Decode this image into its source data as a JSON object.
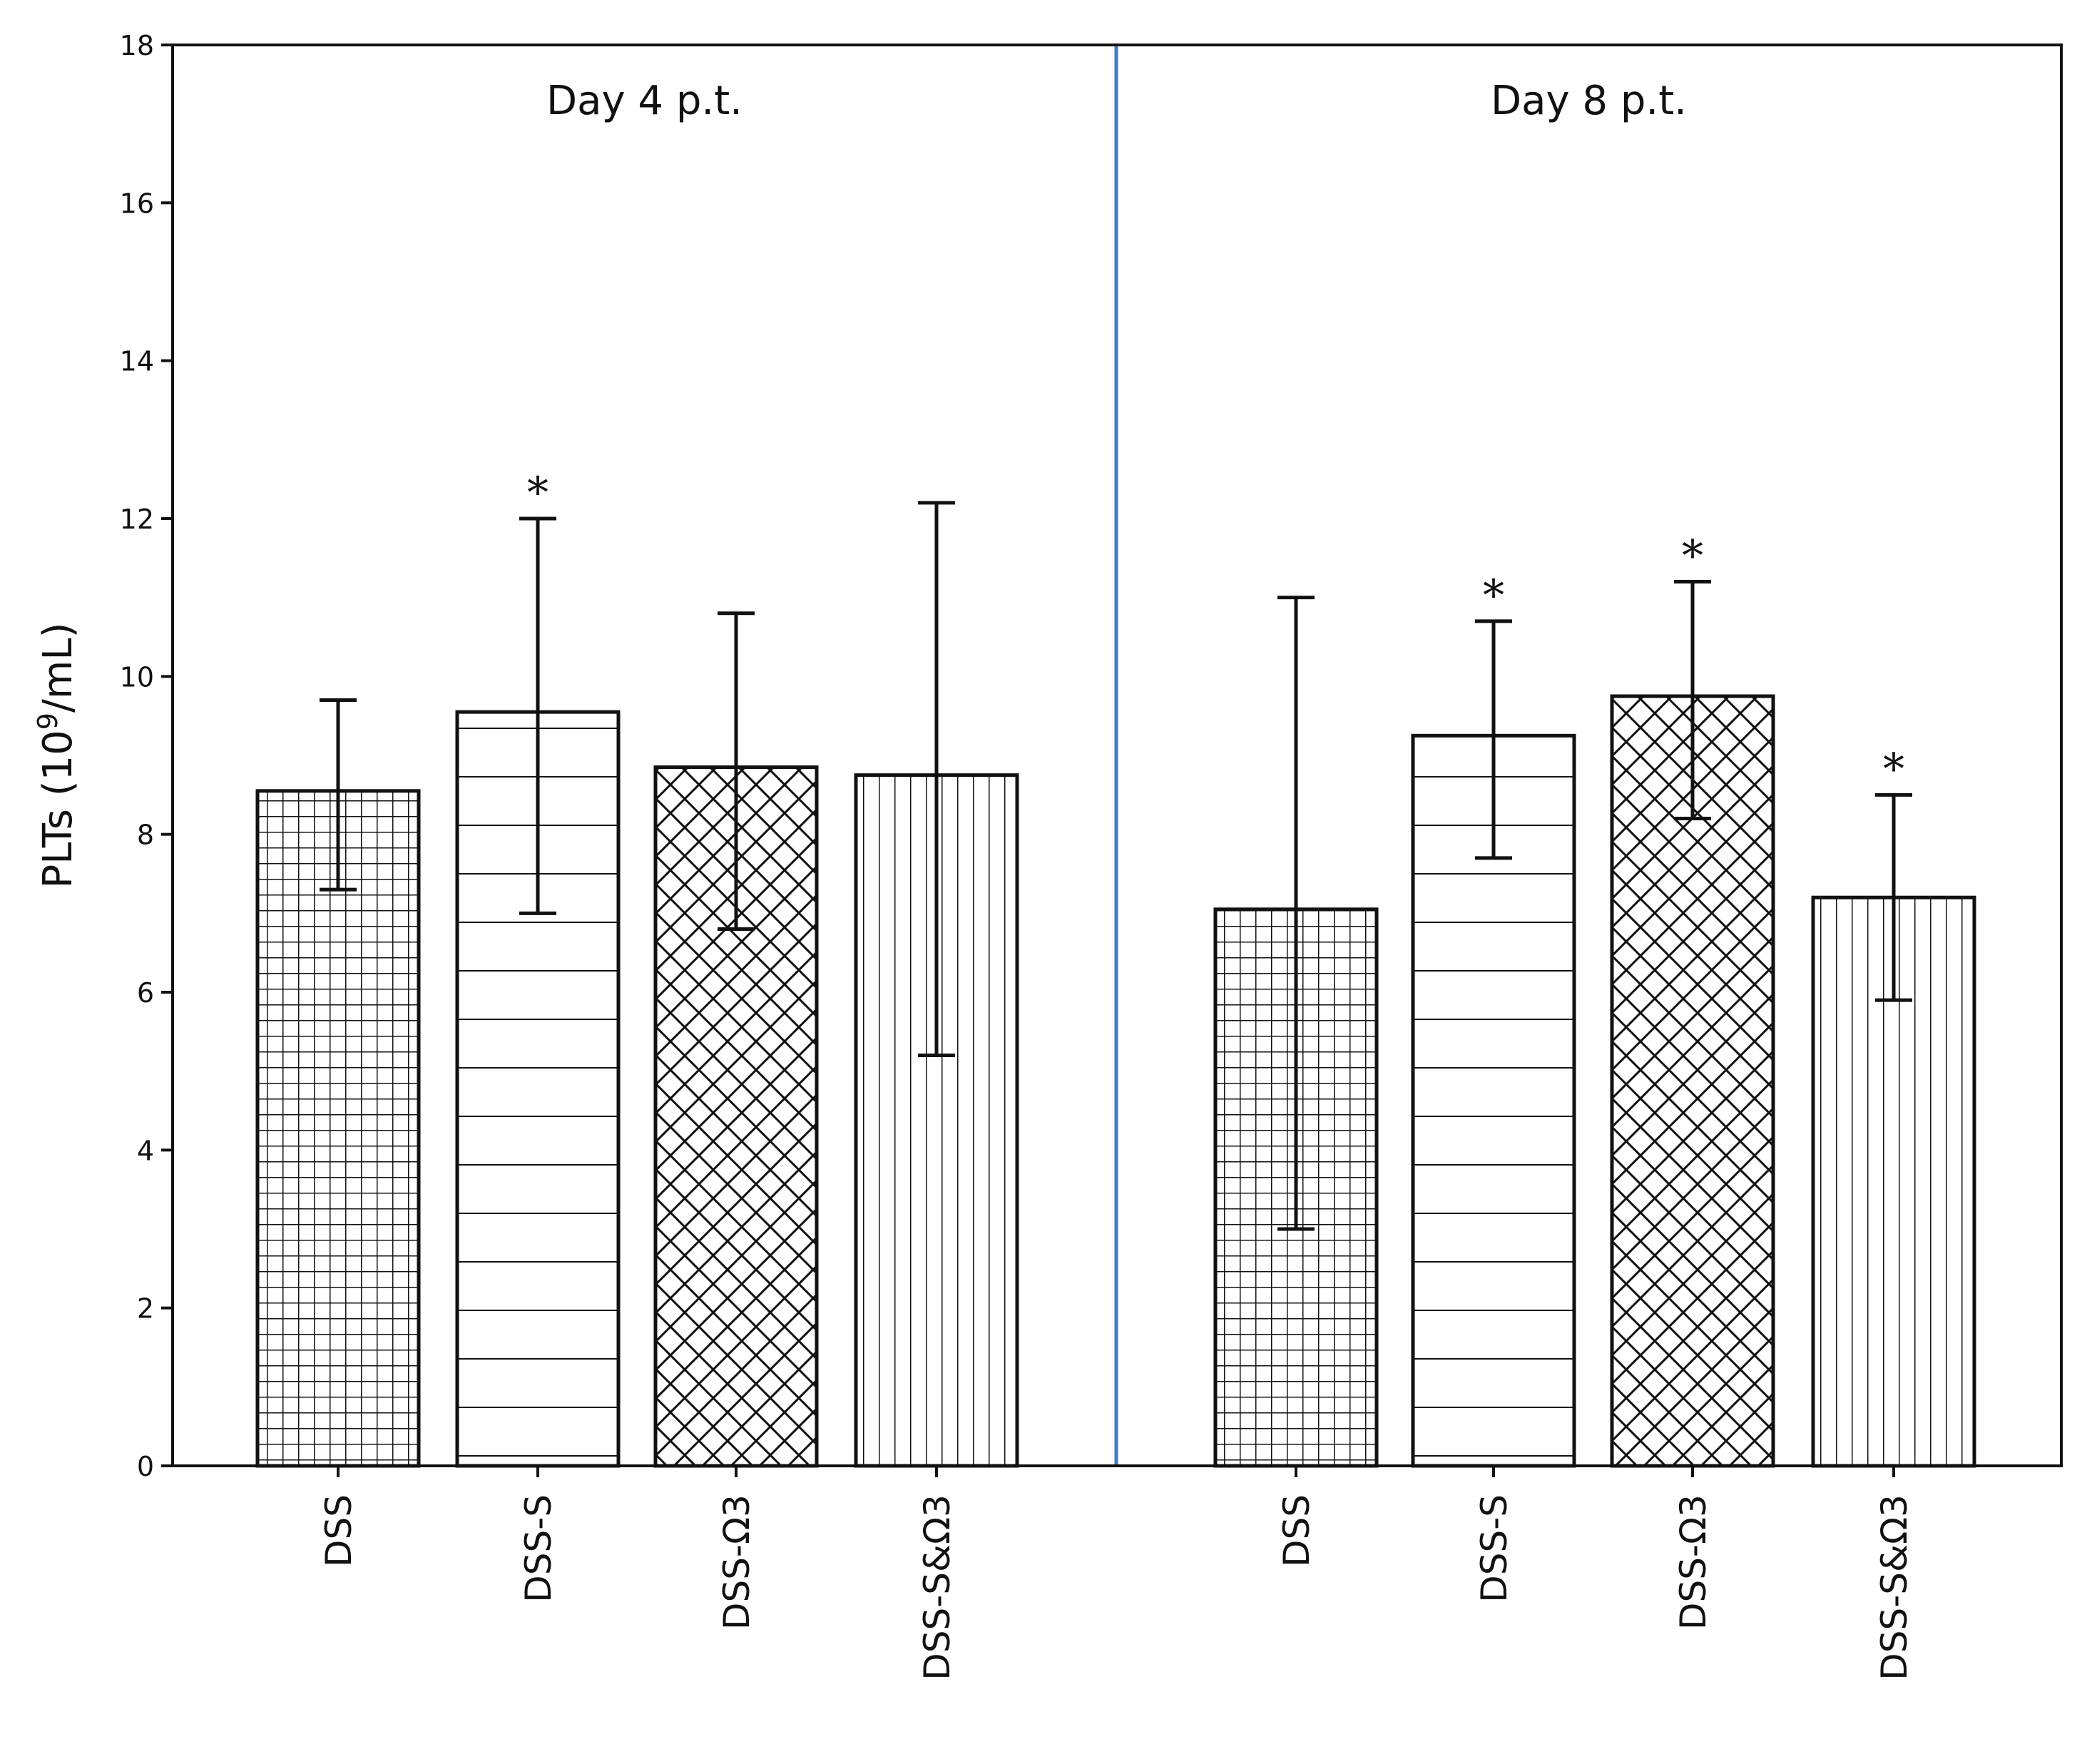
{
  "chart_data": {
    "type": "bar",
    "title": "",
    "xlabel": "",
    "ylabel": "PLTs (10",
    "ylabel_exponent": "9",
    "ylabel_suffix": "/mL)",
    "ylim": [
      0,
      18
    ],
    "yticks": [
      0,
      2,
      4,
      6,
      8,
      10,
      12,
      14,
      16,
      18
    ],
    "grid": false,
    "legend": "none",
    "divider_color": "#3b7fc4",
    "bar_edge_color": "#111111",
    "panels": [
      {
        "label": "Day 4 p.t.",
        "categories": [
          "DSS",
          "DSS-S",
          "DSS-Ω3",
          "DSS-S&Ω3"
        ],
        "values": [
          8.55,
          9.55,
          8.85,
          8.75
        ],
        "err_low": [
          7.3,
          7.0,
          6.8,
          5.2
        ],
        "err_high": [
          9.7,
          12.0,
          10.8,
          12.2
        ],
        "patterns": [
          "grid",
          "horizontal",
          "crosshatch",
          "vertical"
        ],
        "significance": [
          "",
          "*",
          "",
          ""
        ]
      },
      {
        "label": "Day 8 p.t.",
        "categories": [
          "DSS",
          "DSS-S",
          "DSS-Ω3",
          "DSS-S&Ω3"
        ],
        "values": [
          7.05,
          9.25,
          9.75,
          7.2
        ],
        "err_low": [
          3.0,
          7.7,
          8.2,
          5.9
        ],
        "err_high": [
          11.0,
          10.7,
          11.2,
          8.5
        ],
        "patterns": [
          "grid",
          "horizontal",
          "crosshatch",
          "vertical"
        ],
        "significance": [
          "",
          "*",
          "*",
          "*"
        ]
      }
    ]
  }
}
